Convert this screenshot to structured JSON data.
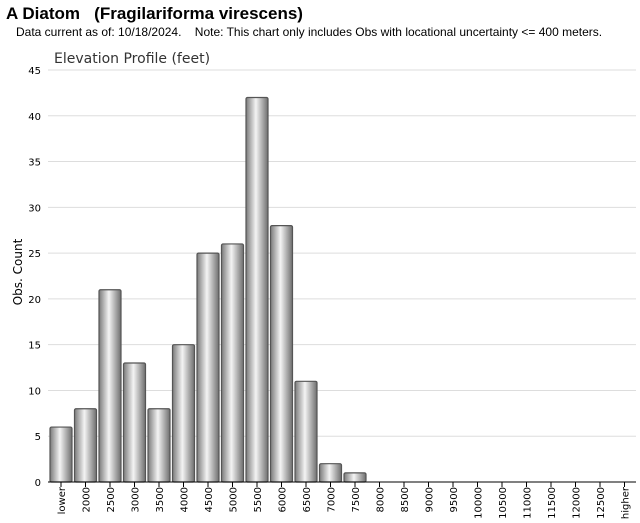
{
  "header": {
    "title": "A Diatom   (Fragilariforma virescens)",
    "subtitle": "Data current as of: 10/18/2024.    Note: This chart only includes Obs with locational uncertainty <= 400 meters."
  },
  "chart_data": {
    "type": "bar",
    "title": "Elevation Profile (feet)",
    "xlabel": "",
    "ylabel": "Obs. Count",
    "ylim": [
      0,
      45
    ],
    "yticks": [
      0,
      5,
      10,
      15,
      20,
      25,
      30,
      35,
      40,
      45
    ],
    "grid": true,
    "categories": [
      "lower",
      "2000",
      "2500",
      "3000",
      "3500",
      "4000",
      "4500",
      "5000",
      "5500",
      "6000",
      "6500",
      "7000",
      "7500",
      "8000",
      "8500",
      "9000",
      "9500",
      "10000",
      "10500",
      "11000",
      "11500",
      "12000",
      "12500",
      "higher"
    ],
    "values": [
      6,
      8,
      21,
      13,
      8,
      15,
      25,
      26,
      42,
      28,
      11,
      2,
      1,
      0,
      0,
      0,
      0,
      0,
      0,
      0,
      0,
      0,
      0,
      0
    ],
    "colors": {
      "bar_mid": "#f2f2f2",
      "bar_edge": "#555555",
      "grid": "#dddddd",
      "axis": "#000000"
    }
  }
}
